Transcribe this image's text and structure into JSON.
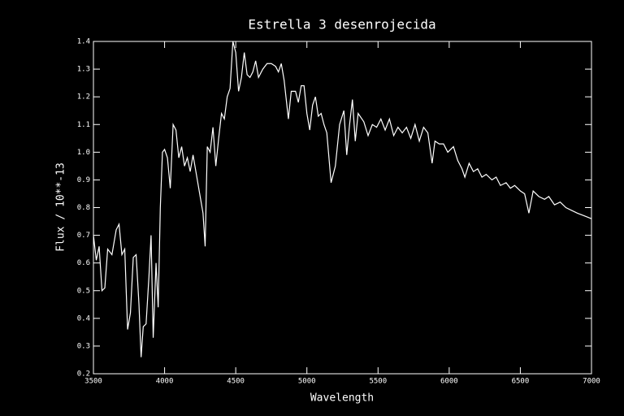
{
  "chart_data": {
    "type": "line",
    "title": "Estrella 3 desenrojecida",
    "xlabel": "Wavelength",
    "ylabel": "Flux / 10**-13",
    "x": [
      3500,
      3520,
      3540,
      3560,
      3580,
      3600,
      3630,
      3660,
      3680,
      3700,
      3720,
      3740,
      3760,
      3780,
      3800,
      3820,
      3835,
      3850,
      3870,
      3890,
      3905,
      3920,
      3940,
      3955,
      3970,
      3985,
      4000,
      4020,
      4040,
      4060,
      4080,
      4100,
      4120,
      4140,
      4160,
      4180,
      4200,
      4220,
      4250,
      4270,
      4285,
      4300,
      4320,
      4340,
      4360,
      4380,
      4400,
      4420,
      4440,
      4460,
      4480,
      4500,
      4520,
      4540,
      4560,
      4580,
      4600,
      4620,
      4640,
      4660,
      4690,
      4720,
      4750,
      4780,
      4800,
      4820,
      4840,
      4870,
      4890,
      4920,
      4940,
      4960,
      4980,
      5000,
      5020,
      5040,
      5060,
      5080,
      5100,
      5120,
      5140,
      5170,
      5200,
      5230,
      5260,
      5280,
      5300,
      5320,
      5340,
      5360,
      5400,
      5430,
      5460,
      5490,
      5520,
      5550,
      5580,
      5610,
      5640,
      5670,
      5700,
      5730,
      5760,
      5790,
      5820,
      5850,
      5880,
      5900,
      5930,
      5960,
      5990,
      6030,
      6060,
      6090,
      6110,
      6140,
      6170,
      6200,
      6230,
      6260,
      6300,
      6330,
      6360,
      6400,
      6430,
      6460,
      6500,
      6530,
      6560,
      6590,
      6630,
      6670,
      6700,
      6740,
      6780,
      6820,
      6860,
      6900,
      6950,
      7000
    ],
    "series": [
      {
        "color": "#ffffff",
        "values": [
          0.7,
          0.61,
          0.66,
          0.5,
          0.51,
          0.65,
          0.63,
          0.72,
          0.74,
          0.63,
          0.65,
          0.36,
          0.42,
          0.62,
          0.63,
          0.45,
          0.26,
          0.37,
          0.38,
          0.55,
          0.7,
          0.33,
          0.6,
          0.44,
          0.8,
          1.0,
          1.01,
          0.98,
          0.87,
          1.1,
          1.08,
          0.98,
          1.02,
          0.95,
          0.98,
          0.93,
          0.99,
          0.93,
          0.84,
          0.78,
          0.66,
          1.02,
          1.0,
          1.09,
          0.95,
          1.05,
          1.14,
          1.12,
          1.2,
          1.23,
          1.4,
          1.36,
          1.22,
          1.27,
          1.36,
          1.28,
          1.27,
          1.29,
          1.33,
          1.27,
          1.3,
          1.32,
          1.32,
          1.31,
          1.29,
          1.32,
          1.26,
          1.12,
          1.22,
          1.22,
          1.18,
          1.24,
          1.24,
          1.14,
          1.08,
          1.17,
          1.2,
          1.13,
          1.14,
          1.1,
          1.07,
          0.89,
          0.95,
          1.1,
          1.15,
          0.99,
          1.1,
          1.19,
          1.04,
          1.14,
          1.11,
          1.06,
          1.1,
          1.09,
          1.12,
          1.08,
          1.12,
          1.06,
          1.09,
          1.07,
          1.09,
          1.05,
          1.1,
          1.04,
          1.09,
          1.07,
          0.96,
          1.04,
          1.03,
          1.03,
          1.0,
          1.02,
          0.97,
          0.94,
          0.91,
          0.96,
          0.93,
          0.94,
          0.91,
          0.92,
          0.9,
          0.91,
          0.88,
          0.89,
          0.87,
          0.88,
          0.86,
          0.85,
          0.78,
          0.86,
          0.84,
          0.83,
          0.84,
          0.81,
          0.82,
          0.8,
          0.79,
          0.78,
          0.77,
          0.76
        ]
      }
    ],
    "xlim": [
      3500,
      7000
    ],
    "xticks": [
      3500,
      4000,
      4500,
      5000,
      5500,
      6000,
      6500,
      7000
    ],
    "ylim": [
      0.2,
      1.4
    ],
    "yticks": [
      0.2,
      0.3,
      0.4,
      0.5,
      0.6,
      0.7,
      0.8,
      0.9,
      {
        "value": 1,
        "label": "1.0"
      },
      1.1,
      1.2,
      1.3,
      1.4
    ]
  }
}
